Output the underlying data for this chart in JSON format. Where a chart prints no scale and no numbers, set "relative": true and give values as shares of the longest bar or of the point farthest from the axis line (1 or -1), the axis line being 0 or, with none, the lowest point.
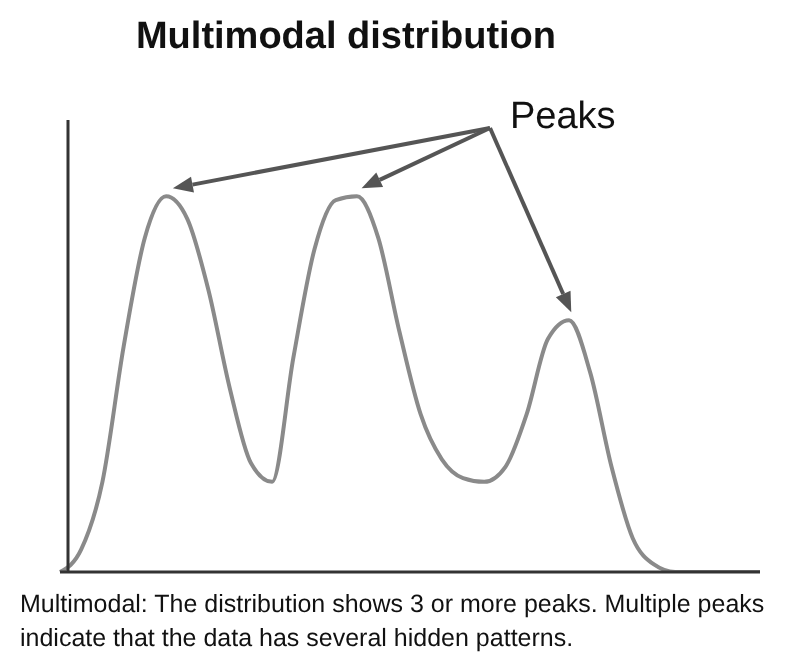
{
  "chart_data": {
    "type": "line",
    "title": "Multimodal distribution",
    "relative": true,
    "categories": [
      null,
      null,
      null,
      null,
      null,
      null,
      null,
      null,
      null,
      null,
      null,
      null,
      null,
      null,
      null,
      null,
      null,
      null,
      null,
      null,
      null,
      null,
      null,
      null,
      null,
      null,
      null,
      null,
      null,
      null,
      null,
      null,
      null,
      null
    ],
    "series": [
      {
        "color": "#8a8a8a",
        "values": [
          0,
          0.06,
          0.24,
          0.6,
          0.89,
          1,
          0.94,
          0.75,
          0.49,
          0.29,
          0.24,
          0.57,
          0.86,
          0.99,
          1,
          0.89,
          0.64,
          0.42,
          0.3,
          0.25,
          0.24,
          0.28,
          0.42,
          0.62,
          0.67,
          0.53,
          0.28,
          0.09,
          0.02,
          0,
          0,
          0,
          0,
          0
        ]
      }
    ],
    "annotations": [
      "Peaks",
      "Multimodal: The distribution shows 3 or more peaks. Multiple peaks indicate that the data has several hidden patterns."
    ]
  }
}
